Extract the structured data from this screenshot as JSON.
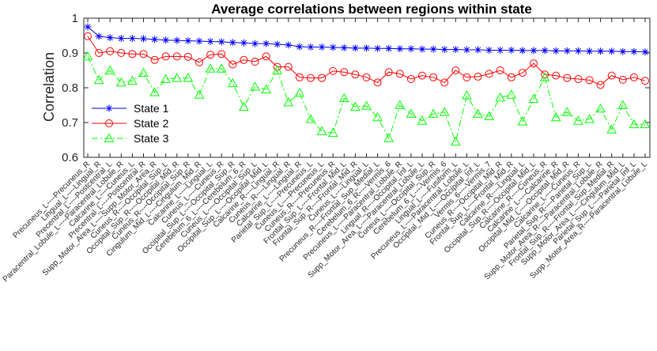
{
  "chart_data": {
    "type": "line",
    "title": "Average correlations between regions within state",
    "xlabel": "",
    "ylabel": "Correlation",
    "ylim": [
      0.6,
      1.0
    ],
    "yticks": [
      0.6,
      0.7,
      0.8,
      0.9,
      1.0
    ],
    "ytick_labels": [
      "0.6",
      "0.7",
      "0.8",
      "0.9",
      "1"
    ],
    "grid": false,
    "legend_position": "center-left",
    "categories": [
      "Precuneus_L----Precuneus_R",
      "Lingual_L----Lingual_R",
      "Precentral_L----Postcentral_L",
      "Paracentral_Lobule_L----Paracentral_Lobule_R",
      "Calcarine_L----Cuneus_L",
      "Precentral_L----Postcentral_R",
      "Supp_Motor_Area_L----Supp_Motor_Area_R",
      "Cuneus_R----Occipital_Sup_L",
      "Occipital_Sup_R----Occipital_Mid_R",
      "Cuneus_R----Occipital_Sup_R",
      "Cingulum_Mid_L----Cingulum_Mid_R",
      "Calcarine_L----Lingual_L",
      "Cuneus_L----Cuneus_R",
      "Occipital_Sup_L----Occipital_Sup_R",
      "Cerebelum_6_L----Cerebelum_6_R",
      "Cuneus_L----Occipital_Sup_L",
      "Occipital_Sup_L----Occipital_Mid_L",
      "Calcarine_R----Lingual_R",
      "Cuneus_R----Lingual_R",
      "Calcarine_L----Lingual_R",
      "Parietal_Sup_L----Precuneus_L",
      "Cuneus_L----Precuneus_L",
      "Cuneus_R----Precuneus_R",
      "Frontal_Sup_L----Frontal_Mid_L",
      "Frontal_Sup_R----Frontal_Mid_R",
      "Cuneus_L----Lingual_L",
      "Precuneus_R----Frontal_Sup_Medial_L",
      "Cerebelum_6_R----Vermis_6",
      "Precuneus_L----Paracentral_Lobule_R",
      "Lingual_R----Occipital_Inf_L",
      "Supp_Motor_Area_L----Paracentral_Lobule_L",
      "Cuneus_L----Occipital_Sup_R",
      "Cerebelum_6_L----Vermis_6",
      "Lingual_L----Fusiform_L",
      "Precuneus_L----Paracentral_Lobule_L",
      "Occipital_Mid_L----Occipital_Inf_L",
      "Vermis_6----Vermis_7",
      "Cuneus_R----Occipital_Mid_R",
      "Frontal_Sup_L----Frontal_Mid_R",
      "Calcarine_R----Lingual_L",
      "Occipital_Sup_R----Occipital_Mid_L",
      "Calcarine_R----Cuneus_R",
      "Calcarine_L----Calcarine_R",
      "Occipital_Mid_L----Occipital_Mid_R",
      "Calcarine_L----Cuneus_R",
      "Parietal_Sup_R----Parietal_Sup_L",
      "Supp_Motor_Area_R----Paracentral_Lobule_R",
      "Frontal_Sup_R----Frontal_Sup_Medial_R",
      "Supp_Motor_Area_L----Cingulum_Mid_L",
      "Parietal_Sup_L----Parietal_Inf_L",
      "Supp_Motor_Area_R----Paracentral_Lobule_L"
    ],
    "series": [
      {
        "name": "State 1",
        "color": "#0000ff",
        "line_style": "solid",
        "marker": "asterisk",
        "values": [
          0.975,
          0.948,
          0.944,
          0.942,
          0.942,
          0.941,
          0.939,
          0.937,
          0.936,
          0.935,
          0.934,
          0.933,
          0.932,
          0.93,
          0.929,
          0.927,
          0.927,
          0.925,
          0.923,
          0.918,
          0.917,
          0.917,
          0.916,
          0.915,
          0.914,
          0.914,
          0.913,
          0.913,
          0.912,
          0.912,
          0.911,
          0.911,
          0.91,
          0.91,
          0.909,
          0.909,
          0.908,
          0.908,
          0.908,
          0.907,
          0.907,
          0.907,
          0.906,
          0.906,
          0.906,
          0.905,
          0.905,
          0.905,
          0.904,
          0.904,
          0.903
        ]
      },
      {
        "name": "State 2",
        "color": "#ff0000",
        "line_style": "solid",
        "marker": "circle",
        "values": [
          0.948,
          0.9,
          0.905,
          0.9,
          0.897,
          0.897,
          0.88,
          0.89,
          0.89,
          0.889,
          0.873,
          0.895,
          0.897,
          0.867,
          0.88,
          0.875,
          0.89,
          0.86,
          0.86,
          0.83,
          0.828,
          0.828,
          0.848,
          0.845,
          0.838,
          0.83,
          0.815,
          0.845,
          0.84,
          0.825,
          0.835,
          0.83,
          0.815,
          0.85,
          0.83,
          0.832,
          0.84,
          0.85,
          0.83,
          0.843,
          0.87,
          0.838,
          0.835,
          0.828,
          0.825,
          0.822,
          0.808,
          0.835,
          0.823,
          0.83,
          0.82
        ]
      },
      {
        "name": "State 3",
        "color": "#00ff00",
        "line_style": "dash-dot",
        "marker": "triangle",
        "values": [
          0.89,
          0.822,
          0.85,
          0.815,
          0.82,
          0.843,
          0.787,
          0.825,
          0.828,
          0.828,
          0.78,
          0.855,
          0.855,
          0.813,
          0.745,
          0.803,
          0.795,
          0.85,
          0.758,
          0.785,
          0.71,
          0.675,
          0.67,
          0.77,
          0.745,
          0.748,
          0.715,
          0.655,
          0.75,
          0.725,
          0.705,
          0.725,
          0.73,
          0.645,
          0.778,
          0.725,
          0.718,
          0.772,
          0.78,
          0.703,
          0.768,
          0.83,
          0.715,
          0.73,
          0.705,
          0.71,
          0.74,
          0.68,
          0.75,
          0.695,
          0.695
        ]
      }
    ]
  }
}
